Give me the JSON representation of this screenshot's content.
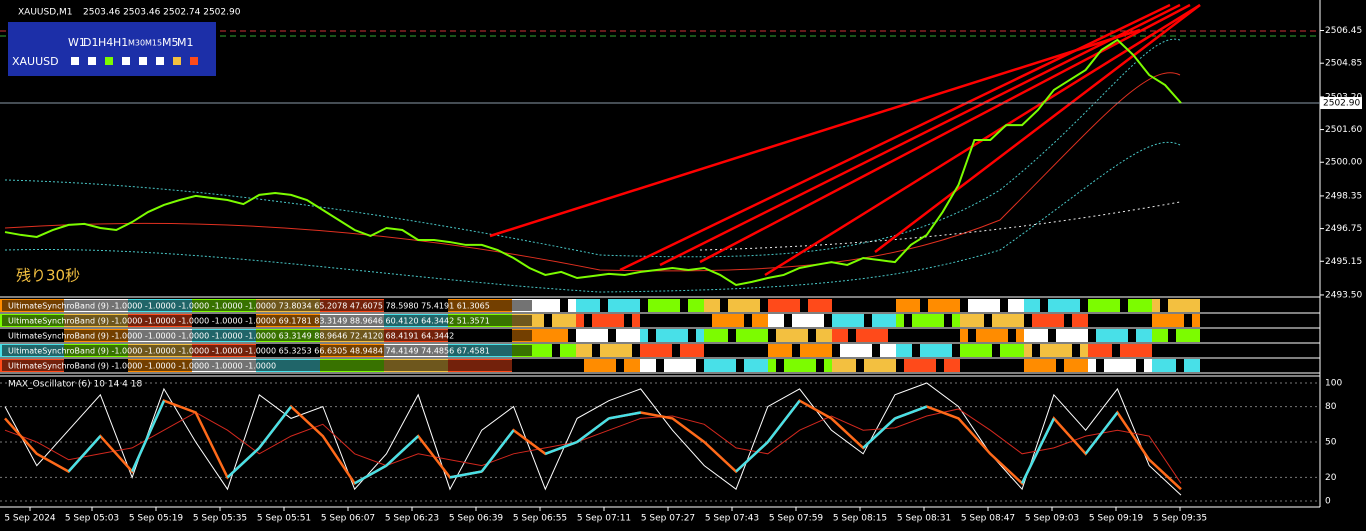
{
  "header": {
    "symbol": "XAUUSD,M1",
    "ohlc": "2503.46 2503.46 2502.74 2502.90"
  },
  "panel": {
    "timeframes": [
      "W1",
      "D1",
      "H4",
      "H1",
      "M30",
      "M15",
      "M5",
      "M1"
    ],
    "symbol": "XAUUSD"
  },
  "countdown": "残り30秒",
  "time_labels": [
    "5 Sep 2024",
    "5 Sep 05:03",
    "5 Sep 05:19",
    "5 Sep 05:35",
    "5 Sep 05:51",
    "5 Sep 06:07",
    "5 Sep 06:23",
    "5 Sep 06:39",
    "5 Sep 06:55",
    "5 Sep 07:11",
    "5 Sep 07:27",
    "5 Sep 07:43",
    "5 Sep 07:59",
    "5 Sep 08:15",
    "5 Sep 08:31",
    "5 Sep 08:47",
    "5 Sep 09:03",
    "5 Sep 09:19",
    "5 Sep 09:35"
  ],
  "bands": [
    "UltimateSynchroBand (9) -1.0000 -1.0000 -1.0000 -1.0000 -1.0000 73.8034 65.2078 47.6075 78.5980 75.4191 61.3065",
    "UltimateSynchroBand (9) -1.0000 -1.0000 -1.0000 -1.0000 -1.0000 69.1781 83.3149 88.9646 60.4120 64.3442 51.3571",
    "UltimateSynchroBand (9) -1.0000 -1.0000 -1.0000 -1.0000 -1.0000 63.3149 88.9646 72.4120 68.4191 64.3442",
    "UltimateSynchroBand (9) -1.0000 -1.0000 -1.0000 -1.0000 -1.0000 65.3253 66.6305 48.9484 74.4149 74.4856 67.4581",
    "UltimateSynchroBand (9) -1.0000 -1.0000 -1.0000 -1.0000 -1.0000"
  ],
  "chart_data": [
    {
      "type": "line",
      "color": "#7cfc00",
      "values": [
        2496.58,
        2496.44,
        2496.34,
        2496.68,
        2496.93,
        2496.98,
        2496.78,
        2496.68,
        2497.07,
        2497.56,
        2497.91,
        2498.15,
        2498.35,
        2498.25,
        2498.15,
        2497.95,
        2498.4,
        2498.49,
        2498.4,
        2498.15,
        2497.66,
        2497.17,
        2496.68,
        2496.39,
        2496.78,
        2496.68,
        2496.19,
        2496.19,
        2496.09,
        2495.95,
        2495.95,
        2495.7,
        2495.31,
        2494.82,
        2494.48,
        2494.63,
        2494.33,
        2494.43,
        2494.53,
        2494.48,
        2494.63,
        2494.72,
        2494.82,
        2494.72,
        2494.82,
        2494.48,
        2493.99,
        2494.14,
        2494.33,
        2494.48,
        2494.82,
        2494.97,
        2495.11,
        2494.97,
        2495.31,
        2495.21,
        2495.11,
        2495.95,
        2496.44,
        2497.56,
        2498.89,
        2501.09,
        2501.09,
        2501.82,
        2501.82,
        2502.56,
        2503.54,
        2504.03,
        2504.52,
        2505.5,
        2505.99,
        2505.25,
        2504.27,
        2503.78,
        2502.9
      ],
      "ylim": [
        2493.4,
        2507.7
      ],
      "yticks": [
        {
          "value": 2493.5,
          "label": "2493.50"
        },
        2495.15,
        2496.75,
        2498.35,
        {
          "value": 2500,
          "label": "2500.00"
        },
        {
          "value": 2501.6,
          "label": "2501.60"
        },
        {
          "value": 2503.2,
          "label": "2503.20"
        },
        2504.85,
        2506.45
      ],
      "current_price": {
        "value": 2502.9,
        "label": "2502.90"
      }
    },
    {
      "type": "line",
      "title": "MAX_Oscillator (6) 10 14 4 18",
      "series": [
        {
          "color": "#ffffff",
          "values": [
            80,
            30,
            60,
            90,
            20,
            95,
            50,
            10,
            90,
            70,
            80,
            10,
            40,
            90,
            10,
            60,
            80,
            10,
            70,
            85,
            95,
            60,
            30,
            10,
            80,
            95,
            60,
            40,
            90,
            100,
            80,
            40,
            10,
            90,
            60,
            95,
            30,
            5
          ]
        },
        {
          "color": "#d2281e",
          "values": [
            60,
            50,
            35,
            40,
            45,
            60,
            75,
            60,
            40,
            55,
            65,
            40,
            30,
            40,
            35,
            30,
            40,
            45,
            50,
            60,
            70,
            72,
            65,
            45,
            40,
            60,
            72,
            60,
            62,
            72,
            78,
            60,
            40,
            45,
            55,
            60,
            55,
            15
          ]
        },
        {
          "color": "#ff6a1a",
          "values": [
            70,
            40,
            25,
            55,
            25,
            85,
            75,
            20,
            45,
            80,
            55,
            15,
            30,
            55,
            20,
            25,
            60,
            40,
            50,
            70,
            75,
            70,
            50,
            25,
            50,
            85,
            70,
            45,
            70,
            80,
            70,
            40,
            15,
            70,
            40,
            75,
            35,
            10
          ]
        }
      ],
      "ylim": [
        0,
        100
      ],
      "yticks": [
        0,
        20,
        50,
        80,
        100
      ]
    }
  ]
}
